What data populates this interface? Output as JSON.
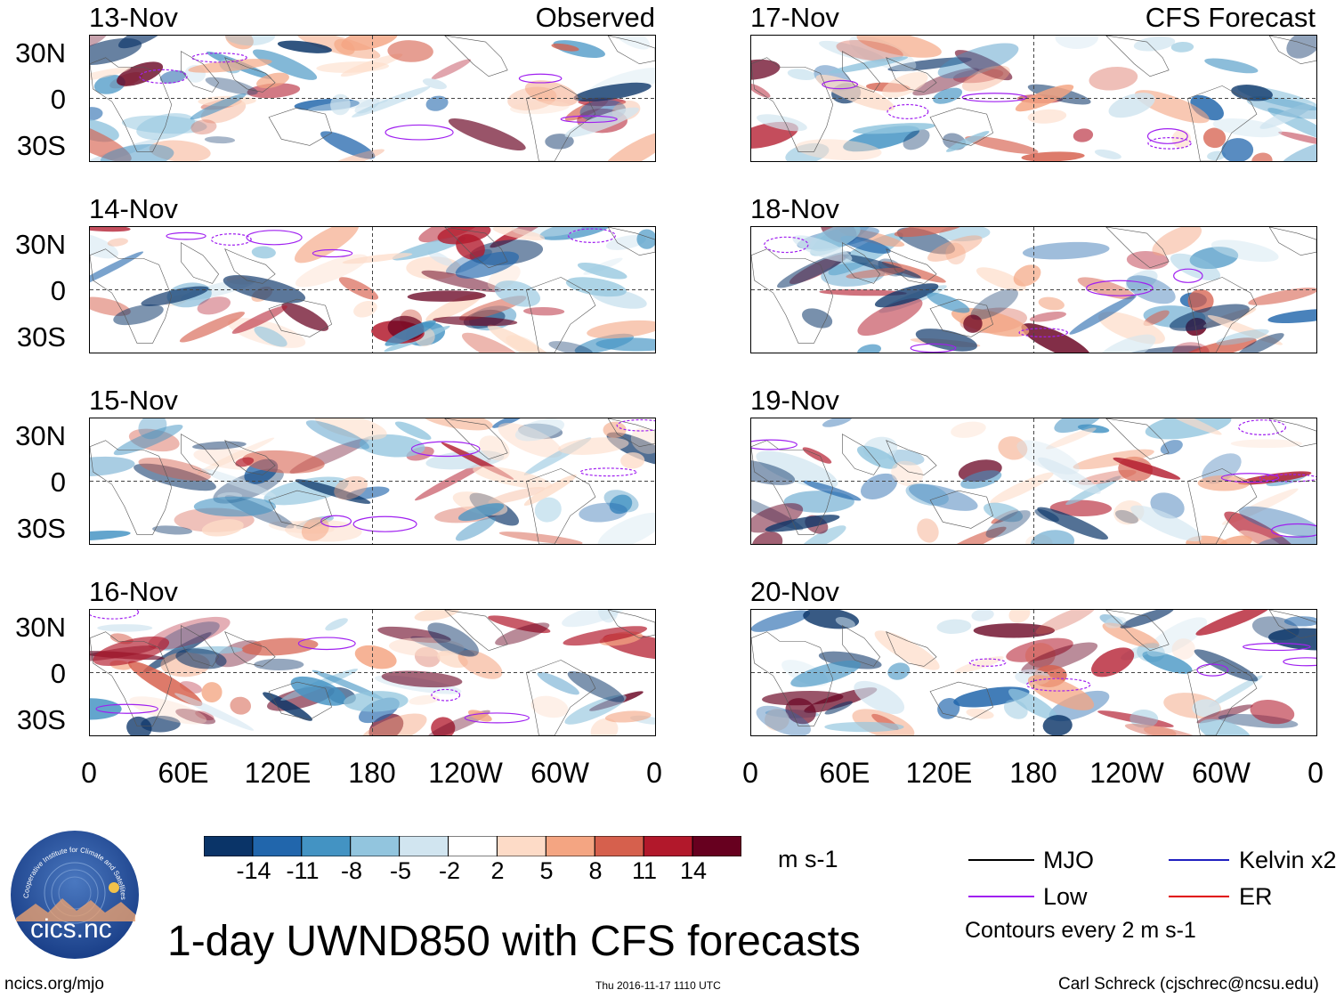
{
  "figure": {
    "title": "1-day UWND850 with CFS forecasts",
    "colorbar_unit": "m s-1",
    "contour_note": "Contours every 2 m s-1",
    "footer_left": "ncics.org/mjo",
    "footer_center": "Thu 2016-11-17 1110 UTC",
    "footer_right": "Carl Schreck (cjschrec@ncsu.edu)",
    "logo_arc_text": "Cooperative Institute for Climate and Satellites",
    "logo_text": "cics.nc"
  },
  "colors": {
    "scale": [
      "#0a3468",
      "#2166ac",
      "#4393c3",
      "#92c5de",
      "#d1e5f0",
      "#ffffff",
      "#fddbc7",
      "#f4a582",
      "#d6604d",
      "#b2182b",
      "#67001f"
    ],
    "mjo": "#000000",
    "low": "#a020f0",
    "kelvin": "#2020c0",
    "er": "#e00000",
    "land": "#555555"
  },
  "chart_data": {
    "type": "heatmap",
    "variable": "850-hPa zonal wind anomaly",
    "unit": "m s-1",
    "colorbar_ticks": [
      "-14",
      "-11",
      "-8",
      "-5",
      "-2",
      "2",
      "5",
      "8",
      "11",
      "14"
    ],
    "x_tick_labels": [
      "0",
      "60E",
      "120E",
      "180",
      "120W",
      "60W",
      "0"
    ],
    "y_tick_labels": [
      "30N",
      "0",
      "30S"
    ],
    "xlim": [
      0,
      360
    ],
    "ylim": [
      -40,
      40
    ],
    "columns": [
      {
        "label": "Observed",
        "dates": [
          "13-Nov",
          "14-Nov",
          "15-Nov",
          "16-Nov"
        ]
      },
      {
        "label": "CFS Forecast",
        "dates": [
          "17-Nov",
          "18-Nov",
          "19-Nov",
          "20-Nov"
        ]
      }
    ],
    "legend": [
      {
        "label": "MJO",
        "color": "#000000"
      },
      {
        "label": "Low",
        "color": "#a020f0"
      },
      {
        "label": "Kelvin x2",
        "color": "#2020c0"
      },
      {
        "label": "ER",
        "color": "#e00000"
      }
    ]
  }
}
